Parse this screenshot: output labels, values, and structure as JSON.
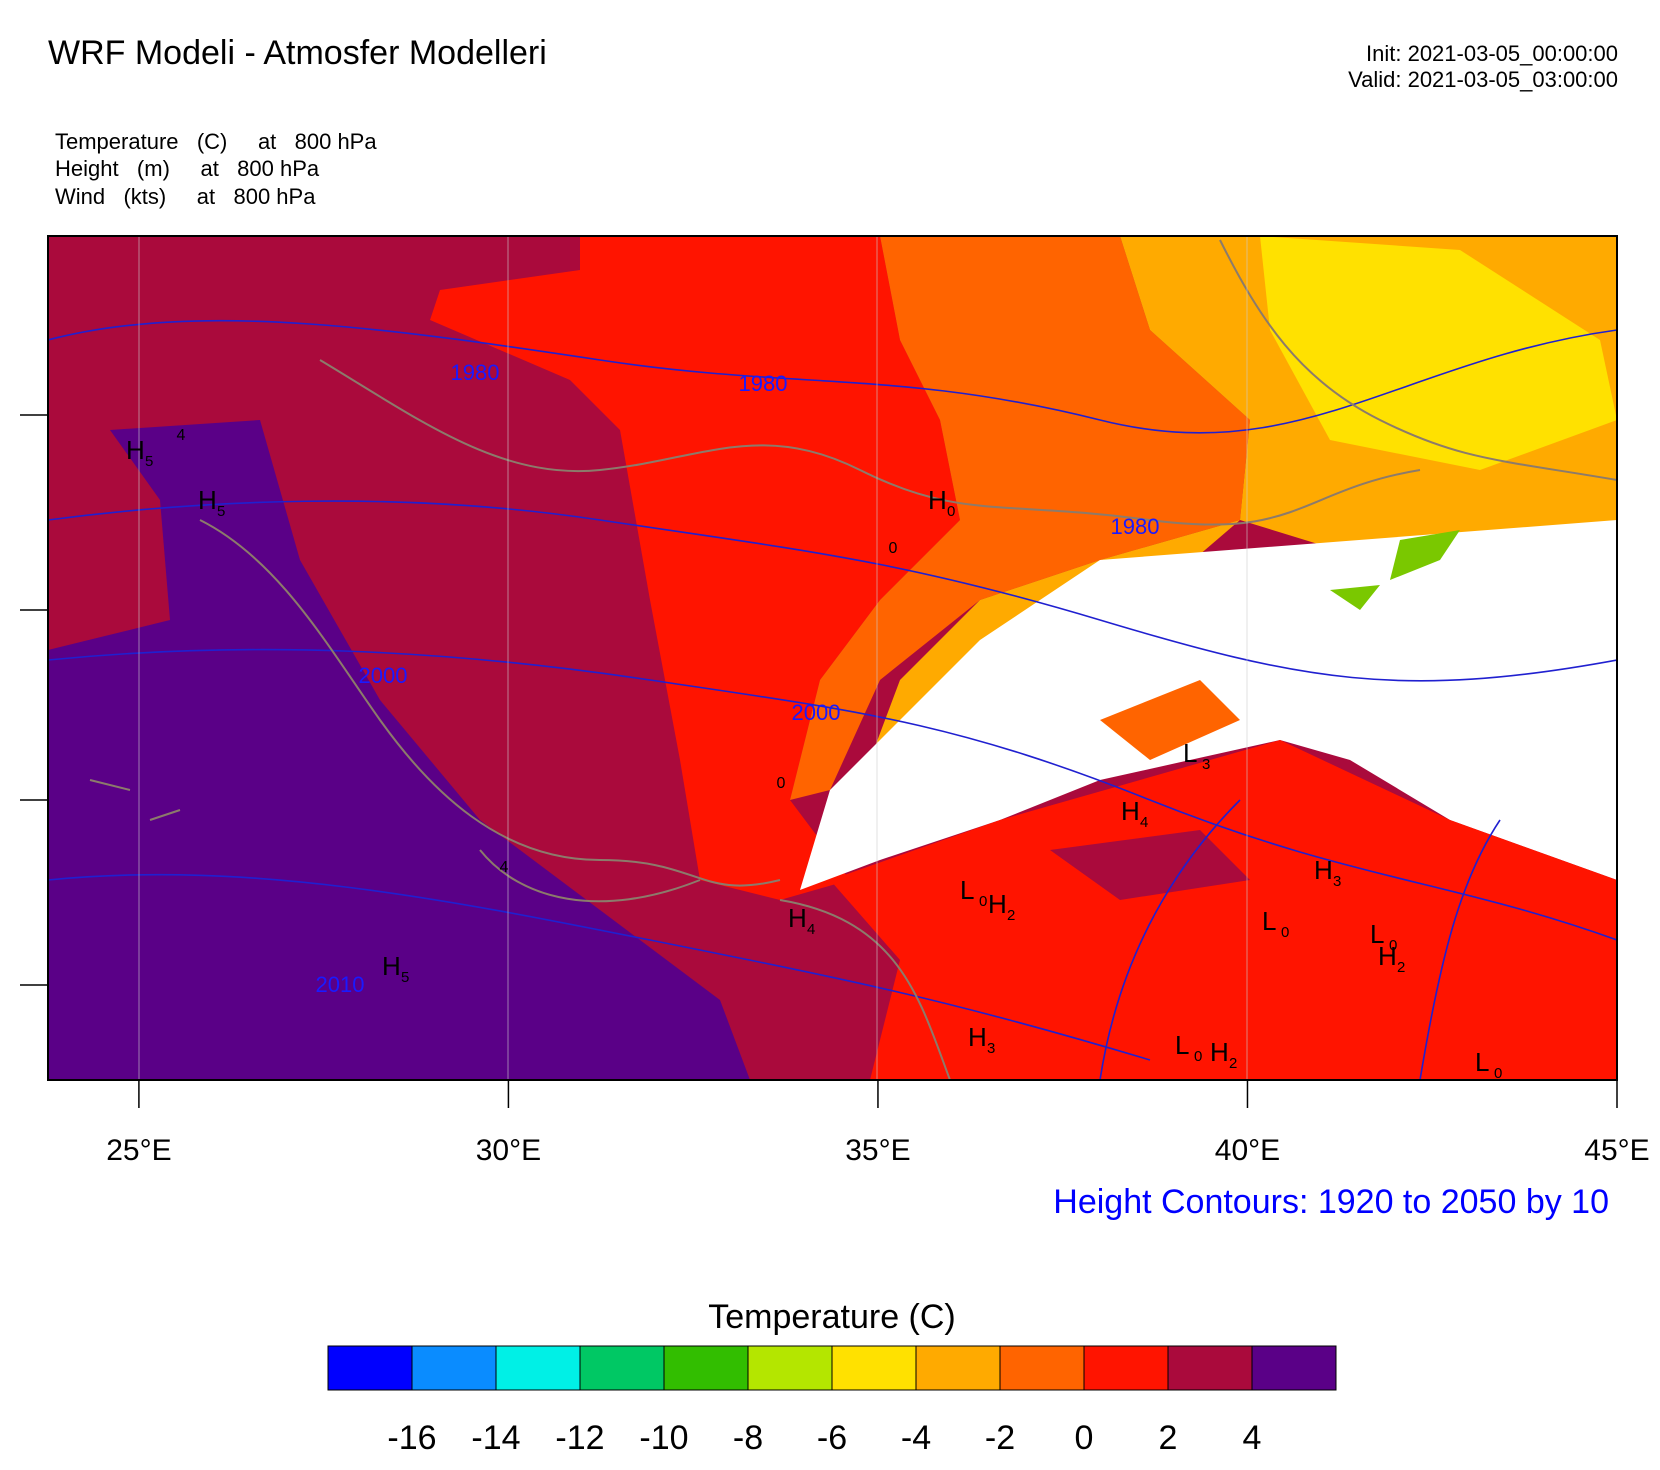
{
  "title": "WRF Modeli - Atmosfer Modelleri",
  "init": "Init: 2021-03-05_00:00:00",
  "valid": "Valid: 2021-03-05_03:00:00",
  "fields": [
    "Temperature   (C)     at   800 hPa",
    "Height   (m)     at   800 hPa",
    "Wind   (kts)     at   800 hPa"
  ],
  "map": {
    "xlim": [
      23.77,
      45
    ],
    "xticks": [
      {
        "value": 25,
        "label": "25°E"
      },
      {
        "value": 30,
        "label": "30°E"
      },
      {
        "value": 35,
        "label": "35°E"
      },
      {
        "value": 40,
        "label": "40°E"
      },
      {
        "value": 45,
        "label": "45°E"
      }
    ],
    "contour_note": "Height Contours: 1920 to 2050 by 10",
    "contour_labels": [
      "1980",
      "1980",
      "1980",
      "2000",
      "2000",
      "2010"
    ],
    "temp_labels": [
      "4",
      "0",
      "0",
      "4"
    ],
    "extrema": [
      {
        "letter": "H",
        "sub": "5"
      },
      {
        "letter": "H",
        "sub": "5"
      },
      {
        "letter": "H",
        "sub": "5"
      },
      {
        "letter": "H",
        "sub": "0"
      },
      {
        "letter": "H",
        "sub": "4"
      },
      {
        "letter": "H",
        "sub": "4"
      },
      {
        "letter": "L",
        "sub": "3"
      },
      {
        "letter": "L",
        "sub": "0"
      },
      {
        "letter": "L",
        "sub": "0"
      },
      {
        "letter": "L",
        "sub": "0"
      },
      {
        "letter": "L",
        "sub": "0"
      },
      {
        "letter": "H",
        "sub": "2"
      },
      {
        "letter": "H",
        "sub": "2"
      },
      {
        "letter": "H",
        "sub": "2"
      },
      {
        "letter": "H",
        "sub": "3"
      },
      {
        "letter": "H",
        "sub": "3"
      },
      {
        "letter": "L",
        "sub": "0"
      }
    ]
  },
  "colorbar": {
    "title": "Temperature  (C)",
    "colors": [
      "#0000ff",
      "#0a8cff",
      "#00f0e6",
      "#00c864",
      "#32be00",
      "#b4e600",
      "#ffe100",
      "#ffaa00",
      "#ff6400",
      "#ff1400",
      "#aa0a3c",
      "#5a0087"
    ],
    "ticks": [
      -16,
      -14,
      -12,
      -10,
      -8,
      -6,
      -4,
      -2,
      0,
      2,
      4
    ]
  }
}
